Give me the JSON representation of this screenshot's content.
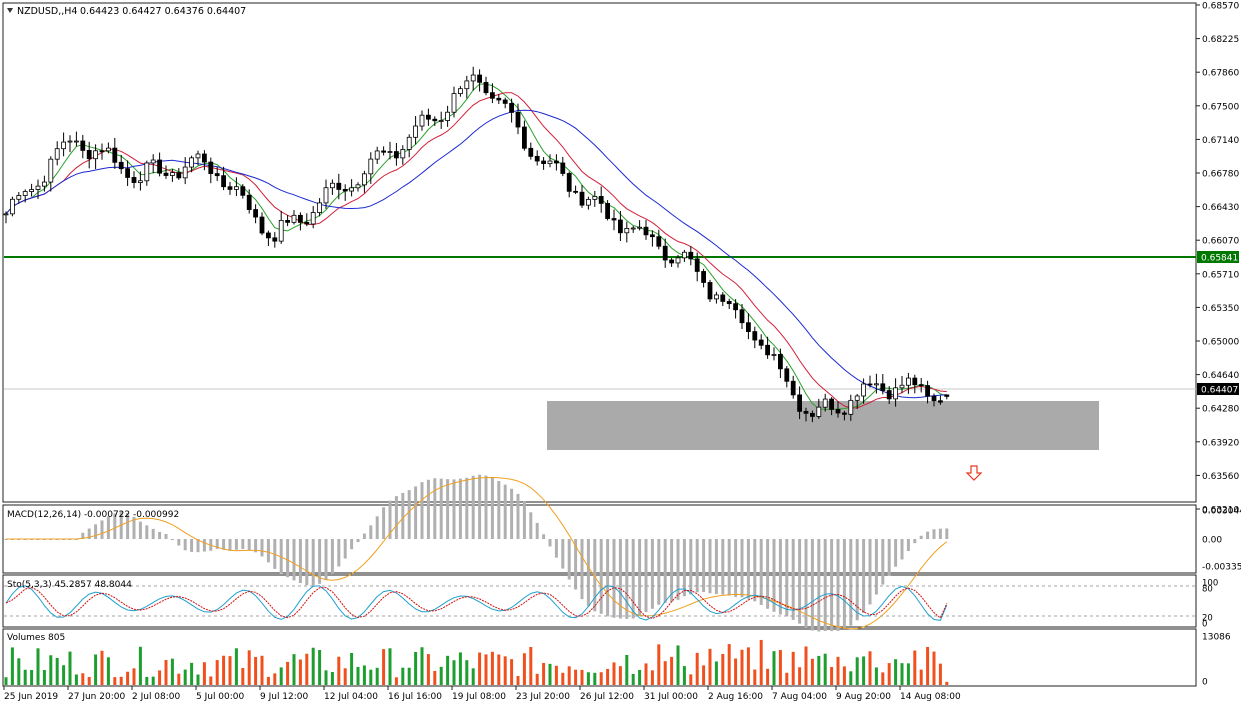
{
  "main_chart": {
    "symbol_label": "NZDUSD,,H4",
    "ohlc_label": "0.64423 0.64427 0.64376 0.64407",
    "price_ticks": [
      "0.68570",
      "0.68225",
      "0.67860",
      "0.67500",
      "0.67140",
      "0.66780",
      "0.66430",
      "0.66070",
      "0.65710",
      "0.65350",
      "0.65000",
      "0.64640",
      "0.64280",
      "0.63920",
      "0.63560",
      "0.63210"
    ],
    "support_level_label": "0.65841",
    "current_price_label": "0.64407",
    "support_line_color": "#007800",
    "zone_color": "#aaaaaa",
    "arrow": {
      "icon": "arrow-down-icon",
      "color": "#e53a1e"
    }
  },
  "macd_panel": {
    "label": "MACD(12,26,14) -0.000722 -0.000992",
    "ticks": [
      "0.003044",
      "0.00",
      "-0.003353"
    ],
    "histogram_color": "#b0b0b0",
    "signal_color": "#f0a020"
  },
  "stoch_panel": {
    "label": "Sto(5,3,3) 45.2857 48.8044",
    "ticks": [
      "100",
      "80",
      "20",
      "0"
    ],
    "main_color": "#1fa0d0",
    "signal_color": "#d01010"
  },
  "volume_panel": {
    "label": "Volumes 805",
    "ticks": [
      "13086",
      "0"
    ],
    "up_color": "#1e9e2e",
    "down_color": "#f0501e"
  },
  "time_axis": [
    "25 Jun 2019",
    "27 Jun 20:00",
    "2 Jul 08:00",
    "5 Jul 00:00",
    "9 Jul 12:00",
    "12 Jul 04:00",
    "16 Jul 16:00",
    "19 Jul 08:00",
    "23 Jul 20:00",
    "26 Jul 12:00",
    "31 Jul 00:00",
    "2 Aug 16:00",
    "7 Aug 04:00",
    "9 Aug 20:00",
    "14 Aug 08:00"
  ],
  "chart_data": {
    "type": "candlestick",
    "symbol": "NZDUSD",
    "timeframe": "H4",
    "ohlc_last": {
      "open": 0.64423,
      "high": 0.64427,
      "low": 0.64376,
      "close": 0.64407
    },
    "support_level": 0.65841,
    "demand_zone": [
      0.6378,
      0.643
    ],
    "y_range": [
      0.6321,
      0.6857
    ],
    "close_path_x": [
      "25 Jun 2019",
      "27 Jun 20:00",
      "2 Jul 08:00",
      "5 Jul 00:00",
      "9 Jul 12:00",
      "12 Jul 04:00",
      "16 Jul 16:00",
      "19 Jul 08:00",
      "23 Jul 20:00",
      "26 Jul 12:00",
      "31 Jul 00:00",
      "2 Aug 16:00",
      "7 Aug 04:00",
      "9 Aug 20:00",
      "14 Aug 08:00"
    ],
    "close_path_y": [
      0.6635,
      0.6715,
      0.6675,
      0.669,
      0.661,
      0.6665,
      0.6715,
      0.678,
      0.669,
      0.663,
      0.659,
      0.652,
      0.642,
      0.6455,
      0.64407
    ],
    "macd": {
      "main": -0.000722,
      "signal": -0.000992,
      "range": [
        -0.003353,
        0.003044
      ]
    },
    "stochastic": {
      "k": 45.2857,
      "d": 48.8044
    },
    "volume_last": 805,
    "volume_max": 13086
  }
}
